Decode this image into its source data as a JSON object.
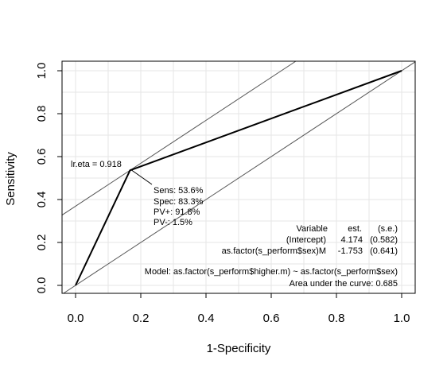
{
  "colors": {
    "curve": "#000000",
    "grid": "#e6e6e6",
    "reference_line": "#555555",
    "box": "#000000",
    "background": "#ffffff"
  },
  "chart_data": {
    "type": "line",
    "xlabel": "1-Specificity",
    "ylabel": "Sensitivity",
    "xlim": [
      0.0,
      1.0
    ],
    "ylim": [
      0.0,
      1.0
    ],
    "x_ticks": [
      0.0,
      0.2,
      0.4,
      0.6,
      0.8,
      1.0
    ],
    "y_ticks": [
      0.0,
      0.2,
      0.4,
      0.6,
      0.8,
      1.0
    ],
    "x_tick_labels": [
      "0.0",
      "0.2",
      "0.4",
      "0.6",
      "0.8",
      "1.0"
    ],
    "y_tick_labels": [
      "0.0",
      "0.2",
      "0.4",
      "0.6",
      "0.8",
      "1.0"
    ],
    "grid": true,
    "grid_step": 0.1,
    "series": [
      {
        "x": [
          0.0,
          0.167,
          1.0
        ],
        "y": [
          0.0,
          0.536,
          1.0
        ]
      }
    ],
    "reference_lines": [
      {
        "slope": 1,
        "intercept": 0.0
      },
      {
        "slope": 1,
        "intercept": 0.369
      }
    ],
    "cutoff_point": {
      "x": 0.167,
      "y": 0.536
    },
    "cutoff_label": "lr.eta = 0.918",
    "metrics": [
      "Sens: 53.6%",
      "Spec: 83.3%",
      "PV+: 91.8%",
      "PV-: 1.5%"
    ],
    "model_table": {
      "header": [
        "Variable",
        "est.",
        "(s.e.)"
      ],
      "rows": [
        [
          "(Intercept)",
          "4.174",
          "(0.582)"
        ],
        [
          "as.factor(s_perform$sex)M",
          "-1.753",
          "(0.641)"
        ]
      ]
    },
    "model_formula": "Model:  as.factor(s_perform$higher.m) ~ as.factor(s_perform$sex)",
    "auc_text": "Area under the curve: 0.685"
  }
}
